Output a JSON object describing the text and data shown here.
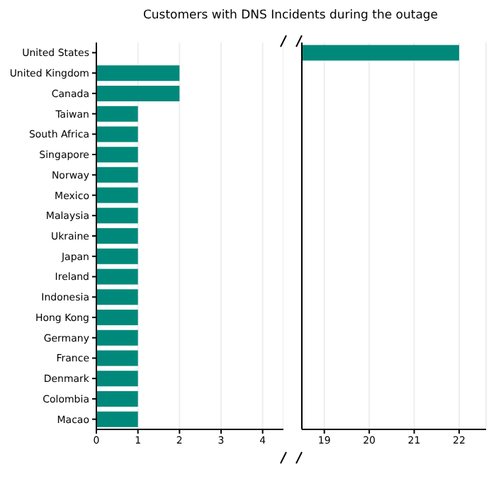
{
  "chart_data": [
    {
      "type": "bar",
      "title": "Customers with DNS Incidents during the outage",
      "orientation": "horizontal",
      "categories": [
        "United States",
        "United Kingdom",
        "Canada",
        "Taiwan",
        "South Africa",
        "Singapore",
        "Norway",
        "Mexico",
        "Malaysia",
        "Ukraine",
        "Japan",
        "Ireland",
        "Indonesia",
        "Hong Kong",
        "Germany",
        "France",
        "Denmark",
        "Colombia",
        "Macao"
      ],
      "values": [
        null,
        2,
        2,
        1,
        1,
        1,
        1,
        1,
        1,
        1,
        1,
        1,
        1,
        1,
        1,
        1,
        1,
        1,
        1
      ],
      "color": "#00897b",
      "xlim": [
        0,
        4.5
      ],
      "xticks": [
        0,
        1,
        2,
        3,
        4
      ],
      "grid": "x"
    },
    {
      "type": "bar",
      "orientation": "horizontal",
      "values": [
        22,
        null,
        null,
        null,
        null,
        null,
        null,
        null,
        null,
        null,
        null,
        null,
        null,
        null,
        null,
        null,
        null,
        null,
        null
      ],
      "color": "#00897b",
      "xlim": [
        18.5,
        22.6
      ],
      "xticks": [
        19,
        20,
        21,
        22
      ],
      "grid": "x",
      "tick_labels": "x"
    }
  ]
}
